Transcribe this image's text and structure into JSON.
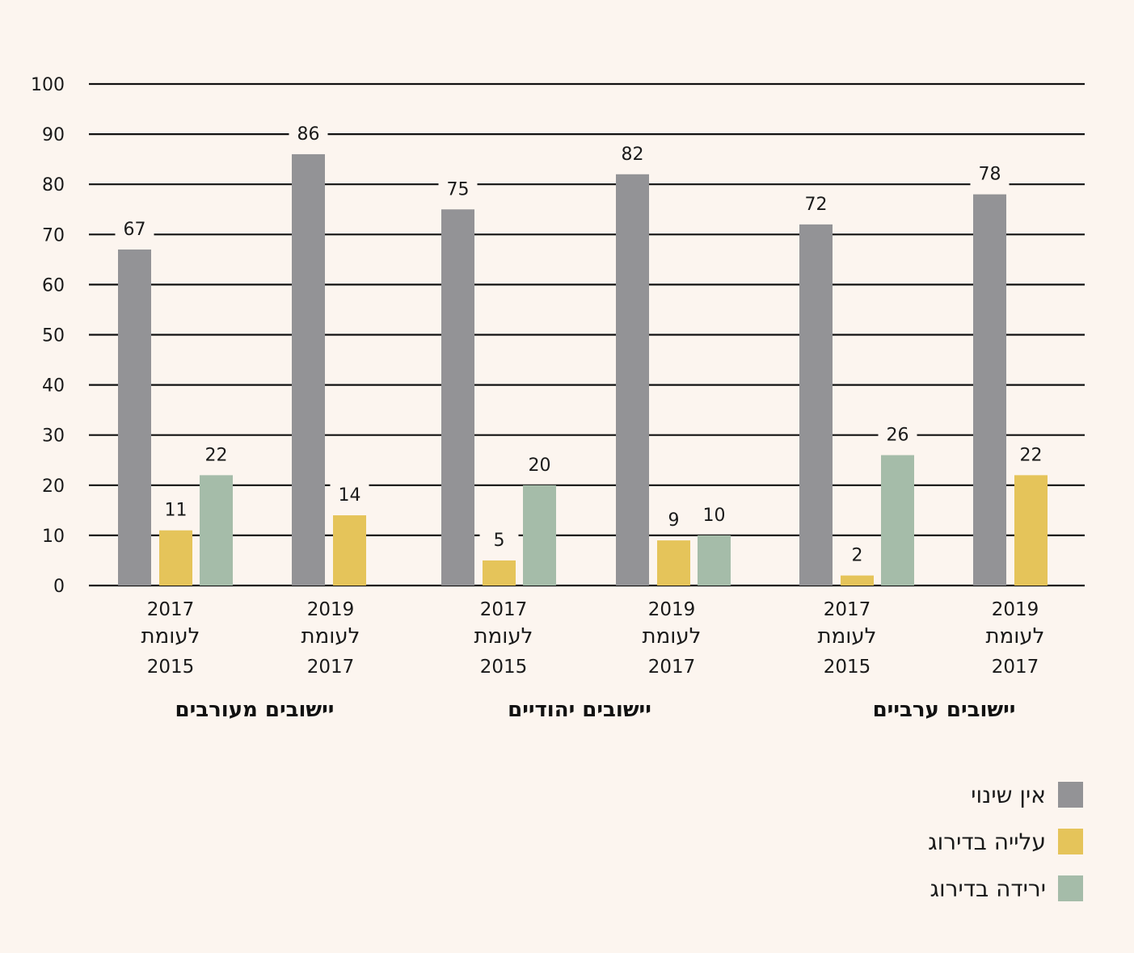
{
  "chart_data": {
    "type": "bar",
    "ylim": [
      0,
      100
    ],
    "yticks": [
      0,
      10,
      20,
      30,
      40,
      50,
      60,
      70,
      80,
      90,
      100
    ],
    "grid": true,
    "legend_position": "bottom-right",
    "categories": [
      {
        "top": "2017",
        "mid": "לעומת",
        "bottom": "2015"
      },
      {
        "top": "2019",
        "mid": "לעומת",
        "bottom": "2017"
      },
      {
        "top": "2017",
        "mid": "לעומת",
        "bottom": "2015"
      },
      {
        "top": "2019",
        "mid": "לעומת",
        "bottom": "2017"
      },
      {
        "top": "2017",
        "mid": "לעומת",
        "bottom": "2015"
      },
      {
        "top": "2019",
        "mid": "לעומת",
        "bottom": "2017"
      }
    ],
    "groups": [
      "יישובים מעורבים",
      "יישובים יהודיים",
      "יישובים ערביים"
    ],
    "series": [
      {
        "name": "אין שינוי",
        "color": "#939396",
        "values": [
          67,
          86,
          75,
          82,
          72,
          78
        ]
      },
      {
        "name": "עלייה בדירוג",
        "color": "#e5c45a",
        "values": [
          11,
          14,
          5,
          9,
          2,
          22
        ]
      },
      {
        "name": "ירידה בדירוג",
        "color": "#a5bca9",
        "values": [
          22,
          null,
          20,
          10,
          26,
          null
        ]
      }
    ]
  }
}
